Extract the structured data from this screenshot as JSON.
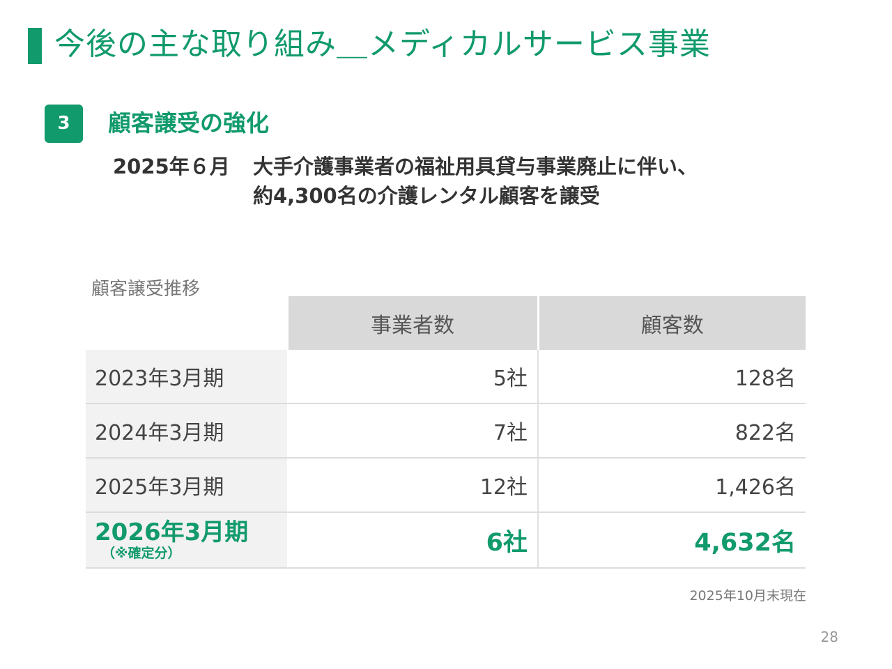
{
  "header": {
    "title": "今後の主な取り組み＿メディカルサービス事業"
  },
  "section": {
    "number": "3",
    "title": "顧客譲受の強化"
  },
  "event": {
    "date": "2025年６月",
    "description_line1": "大手介護事業者の福祉用具貸与事業廃止に伴い、",
    "description_line2": "約4,300名の介護レンタル顧客を譲受"
  },
  "table": {
    "caption": "顧客譲受推移",
    "headers": [
      "",
      "事業者数",
      "顧客数"
    ],
    "rows": [
      {
        "period": "2023年3月期",
        "businesses": "5社",
        "customers": "128名"
      },
      {
        "period": "2024年3月期",
        "businesses": "7社",
        "customers": "822名"
      },
      {
        "period": "2025年3月期",
        "businesses": "12社",
        "customers": "1,426名"
      }
    ],
    "highlight_row": {
      "period": "2026年3月期",
      "note": "（※確定分）",
      "businesses": "6社",
      "customers": "4,632名"
    }
  },
  "footer": {
    "as_of": "2025年10月末現在",
    "page_number": "28"
  },
  "colors": {
    "accent": "#119a6c",
    "header_fill": "#d9d9d9",
    "row_label_fill": "#f2f2f2"
  }
}
